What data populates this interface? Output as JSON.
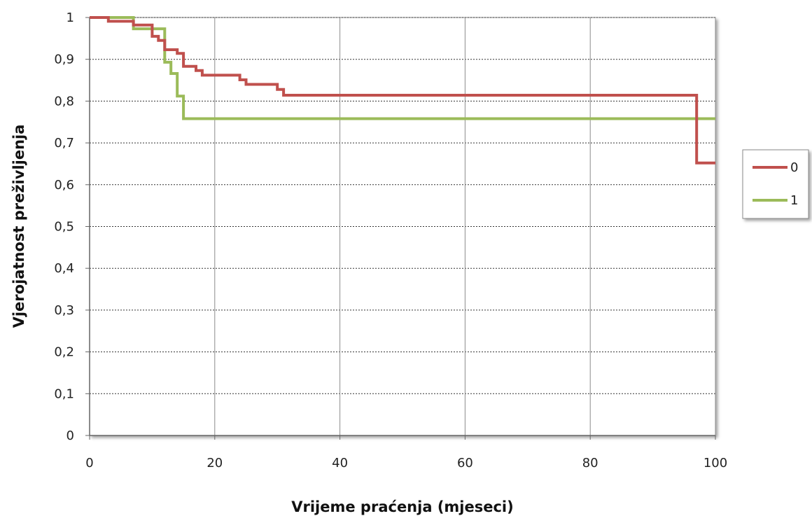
{
  "chart_data": {
    "type": "line",
    "step": true,
    "xlabel": "Vrijeme praćenja (mjeseci)",
    "ylabel": "Vjerojatnost preživljenja",
    "xlim": [
      0,
      100
    ],
    "ylim": [
      0,
      1
    ],
    "x_ticks": [
      0,
      20,
      40,
      60,
      80,
      100
    ],
    "x_tick_labels": [
      "0",
      "20",
      "40",
      "60",
      "80",
      "100"
    ],
    "y_ticks": [
      0,
      0.1,
      0.2,
      0.3,
      0.4,
      0.5,
      0.6,
      0.7,
      0.8,
      0.9,
      1
    ],
    "y_tick_labels": [
      "0",
      "0,1",
      "0,2",
      "0,3",
      "0,4",
      "0,5",
      "0,6",
      "0,7",
      "0,8",
      "0,9",
      "1"
    ],
    "grid": {
      "horizontal": "dotted",
      "vertical": "solid"
    },
    "legend_position": "right",
    "series": [
      {
        "name": "0",
        "color": "#c0504d",
        "points": [
          [
            0,
            1
          ],
          [
            3,
            1
          ],
          [
            3,
            0.991
          ],
          [
            7,
            0.991
          ],
          [
            7,
            0.982
          ],
          [
            10,
            0.982
          ],
          [
            10,
            0.955
          ],
          [
            11,
            0.955
          ],
          [
            11,
            0.945
          ],
          [
            12,
            0.945
          ],
          [
            12,
            0.923
          ],
          [
            14,
            0.923
          ],
          [
            14,
            0.914
          ],
          [
            15,
            0.914
          ],
          [
            15,
            0.883
          ],
          [
            17,
            0.883
          ],
          [
            17,
            0.873
          ],
          [
            18,
            0.873
          ],
          [
            18,
            0.862
          ],
          [
            24,
            0.862
          ],
          [
            24,
            0.851
          ],
          [
            25,
            0.851
          ],
          [
            25,
            0.84
          ],
          [
            30,
            0.84
          ],
          [
            30,
            0.828
          ],
          [
            31,
            0.828
          ],
          [
            31,
            0.814
          ],
          [
            97,
            0.814
          ],
          [
            97,
            0.652
          ],
          [
            100,
            0.652
          ]
        ]
      },
      {
        "name": "1",
        "color": "#9bbb59",
        "points": [
          [
            0,
            1
          ],
          [
            7,
            1
          ],
          [
            7,
            0.973
          ],
          [
            12,
            0.973
          ],
          [
            12,
            0.893
          ],
          [
            13,
            0.893
          ],
          [
            13,
            0.866
          ],
          [
            14,
            0.866
          ],
          [
            14,
            0.812
          ],
          [
            15,
            0.812
          ],
          [
            15,
            0.758
          ],
          [
            100,
            0.758
          ]
        ]
      }
    ]
  }
}
